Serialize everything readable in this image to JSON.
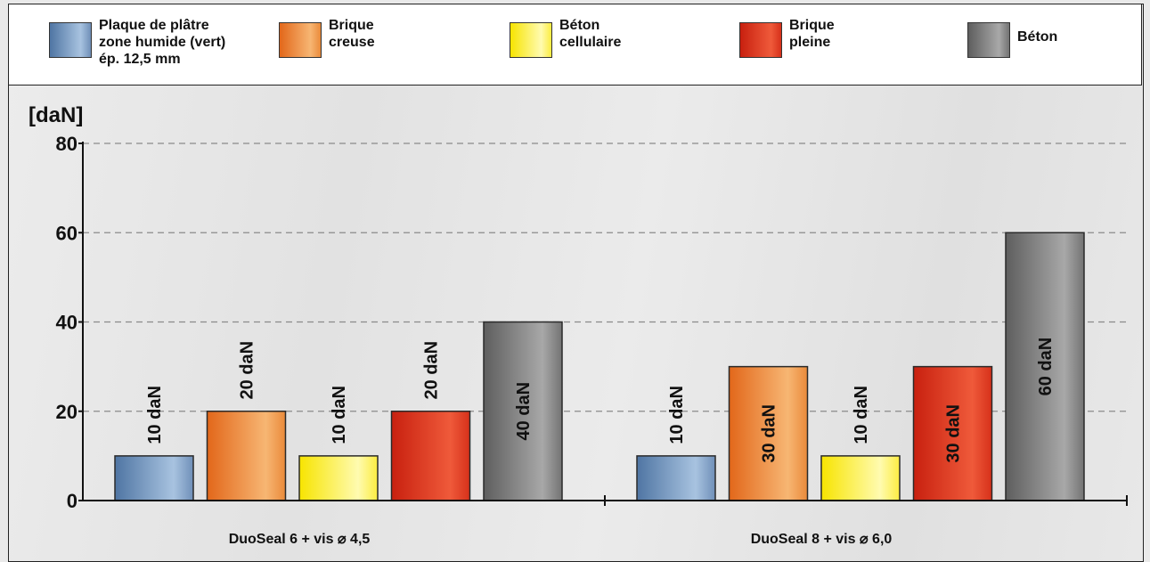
{
  "legend": [
    {
      "label": "Plaque de plâtre\nzone humide (vert)\nép. 12,5 mm",
      "color": "#6f95c2"
    },
    {
      "label": "Brique\ncreuse",
      "color": "#f08a32"
    },
    {
      "label": "Béton\ncellulaire",
      "color": "#fff02a"
    },
    {
      "label": "Brique\npleine",
      "color": "#dc2b1a"
    },
    {
      "label": "Béton",
      "color": "#7b7b7b"
    }
  ],
  "chart_data": {
    "type": "bar",
    "ylabel": "[daN]",
    "ylim": [
      0,
      80
    ],
    "yticks": [
      "0",
      "20",
      "40",
      "60",
      "80"
    ],
    "grid": true,
    "legend_position": "top",
    "categories": [
      "DuoSeal 6 + vis ⌀ 4,5",
      "DuoSeal 8 + vis ⌀ 6,0"
    ],
    "series": [
      {
        "name": "Plaque de plâtre zone humide (vert) ép. 12,5 mm",
        "values": [
          10,
          10
        ],
        "labels": [
          "10 daN",
          "10 daN"
        ],
        "color": "#6f95c2"
      },
      {
        "name": "Brique creuse",
        "values": [
          20,
          30
        ],
        "labels": [
          "20 daN",
          "30 daN"
        ],
        "color": "#f08a32"
      },
      {
        "name": "Béton cellulaire",
        "values": [
          10,
          10
        ],
        "labels": [
          "10 daN",
          "10 daN"
        ],
        "color": "#fff02a"
      },
      {
        "name": "Brique pleine",
        "values": [
          20,
          30
        ],
        "labels": [
          "20 daN",
          "30 daN"
        ],
        "color": "#dc2b1a"
      },
      {
        "name": "Béton",
        "values": [
          40,
          60
        ],
        "labels": [
          "40 daN",
          "60 daN"
        ],
        "color": "#7b7b7b"
      }
    ]
  }
}
